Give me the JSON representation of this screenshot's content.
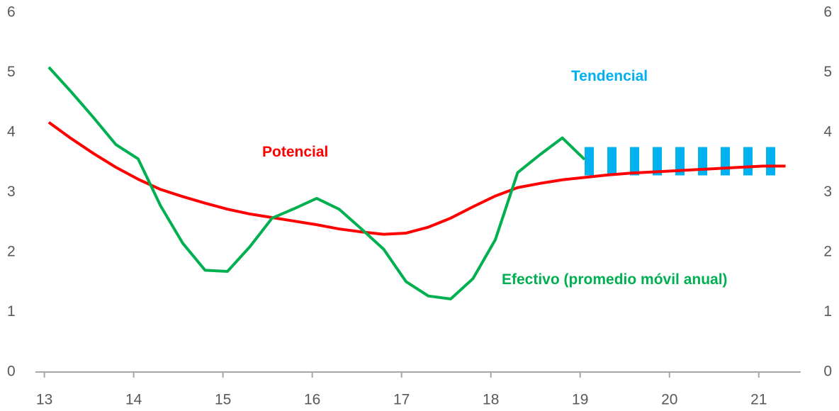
{
  "chart_data": {
    "type": "line",
    "xlim": [
      12.9,
      21.47
    ],
    "xticks": [
      13,
      14,
      15,
      16,
      17,
      18,
      19,
      20,
      21
    ],
    "ylim": [
      0,
      6
    ],
    "yticks": [
      0,
      1,
      2,
      3,
      4,
      5,
      6
    ],
    "y2lim": [
      0,
      6
    ],
    "y2ticks": [
      0,
      1,
      2,
      3,
      4,
      5,
      6
    ],
    "series": [
      {
        "name": "Potencial",
        "color": "#ff0000",
        "x": [
          13.05,
          13.3,
          13.55,
          13.8,
          14.05,
          14.3,
          14.55,
          14.8,
          15.05,
          15.3,
          15.55,
          15.8,
          16.05,
          16.3,
          16.55,
          16.8,
          17.05,
          17.3,
          17.55,
          17.8,
          18.05,
          18.3,
          18.55,
          18.8,
          19.05,
          19.3,
          19.55,
          19.8,
          20.05,
          20.3,
          20.55,
          20.8,
          21.05,
          21.3
        ],
        "values": [
          4.17,
          3.9,
          3.65,
          3.42,
          3.22,
          3.05,
          2.93,
          2.82,
          2.72,
          2.64,
          2.58,
          2.52,
          2.46,
          2.39,
          2.34,
          2.3,
          2.32,
          2.42,
          2.57,
          2.76,
          2.94,
          3.08,
          3.15,
          3.21,
          3.25,
          3.29,
          3.32,
          3.34,
          3.36,
          3.38,
          3.4,
          3.42,
          3.44,
          3.44
        ]
      },
      {
        "name": "Efectivo (promedio móvil anual)",
        "color": "#00b050",
        "x": [
          13.05,
          13.3,
          13.55,
          13.8,
          14.05,
          14.3,
          14.55,
          14.8,
          15.05,
          15.3,
          15.55,
          15.8,
          16.05,
          16.3,
          16.55,
          16.8,
          17.05,
          17.3,
          17.55,
          17.8,
          18.05,
          18.3,
          18.55,
          18.8,
          19.05
        ],
        "values": [
          5.09,
          4.68,
          4.25,
          3.8,
          3.56,
          2.78,
          2.15,
          1.7,
          1.68,
          2.09,
          2.57,
          2.73,
          2.9,
          2.72,
          2.39,
          2.05,
          1.51,
          1.27,
          1.22,
          1.56,
          2.21,
          3.33,
          3.63,
          3.91,
          3.55
        ]
      },
      {
        "name": "Tendencial",
        "color": "#00b0f0",
        "dashed": true,
        "x": [
          19.05,
          21.3
        ],
        "values": [
          3.52,
          3.52
        ]
      }
    ]
  }
}
